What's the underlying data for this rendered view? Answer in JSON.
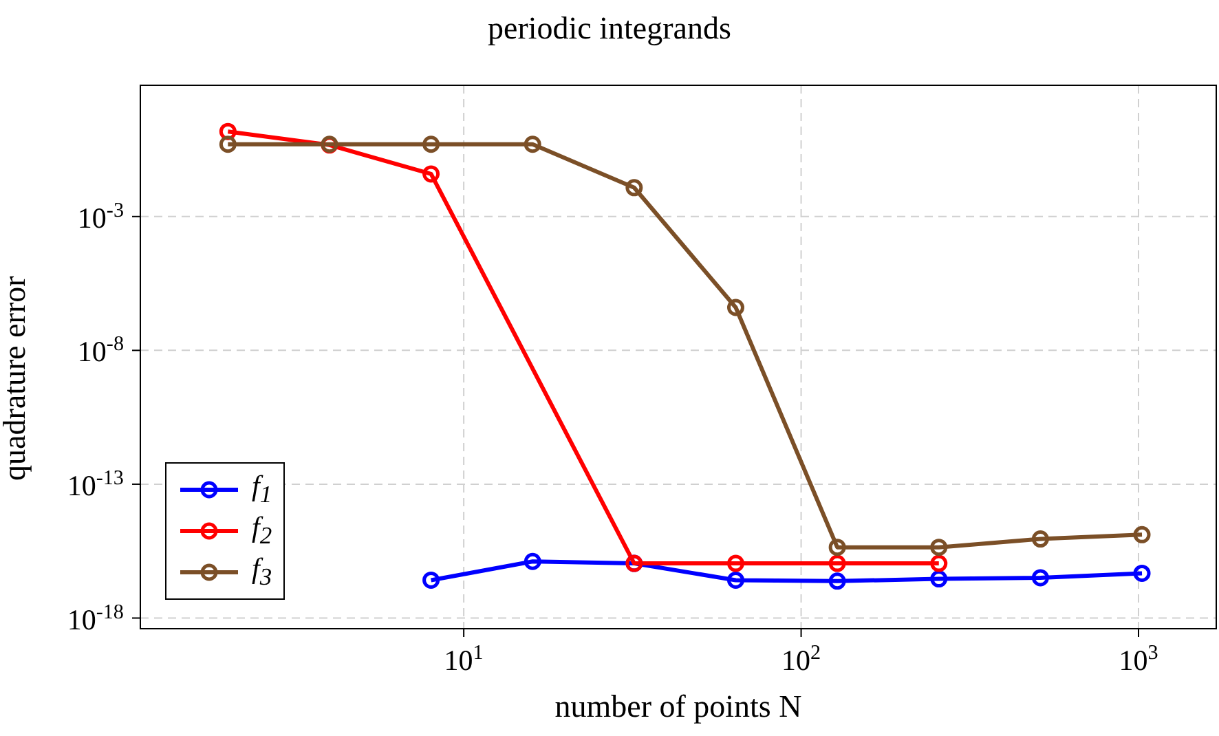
{
  "chart_data": {
    "type": "line",
    "title": "periodic integrands",
    "xlabel": "number of points N",
    "ylabel": "quadrature error",
    "log": "xy",
    "grid": true,
    "legend": "bottom left",
    "marker": "circle",
    "line_style": "solid",
    "xlim": [
      1.1,
      1700
    ],
    "xticks": [
      {
        "value": 10,
        "label": "10$^{1}$"
      },
      {
        "value": 100,
        "label": "10$^{2}$"
      },
      {
        "value": 1000,
        "label": "10$^{3}$"
      }
    ],
    "ylim": [
      4e-19,
      80
    ],
    "yticks": [
      {
        "value": 1e-18,
        "label": "10$^{-18}$"
      },
      {
        "value": 1e-13,
        "label": "10$^{-13}$"
      },
      {
        "value": 1e-08,
        "label": "10$^{-8}$"
      },
      {
        "value": 0.001,
        "label": "10$^{-3}$"
      }
    ],
    "series": [
      {
        "name": "f$_{1}$",
        "color": "#0000ff",
        "x": [
          8,
          16,
          32,
          64,
          128,
          256,
          512,
          1024
        ],
        "values": [
          2.6e-17,
          1.3e-16,
          1.1e-16,
          2.6e-17,
          2.4e-17,
          2.9e-17,
          3.2e-17,
          4.7e-17
        ]
      },
      {
        "name": "f$_{2}$",
        "color": "#ff0000",
        "x": [
          2,
          4,
          8,
          32,
          64,
          128,
          256
        ],
        "values": [
          1.5,
          0.47,
          0.039,
          1.1e-16,
          1.1e-16,
          1.1e-16,
          1.1e-16
        ]
      },
      {
        "name": "f$_{3}$",
        "color": "#7b4f27",
        "x": [
          2,
          4,
          8,
          16,
          32,
          64,
          128,
          256,
          512,
          1024
        ],
        "values": [
          0.5,
          0.5,
          0.5,
          0.5,
          0.012,
          4e-07,
          4.4e-16,
          4.4e-16,
          9e-16,
          1.3e-15
        ]
      }
    ]
  }
}
